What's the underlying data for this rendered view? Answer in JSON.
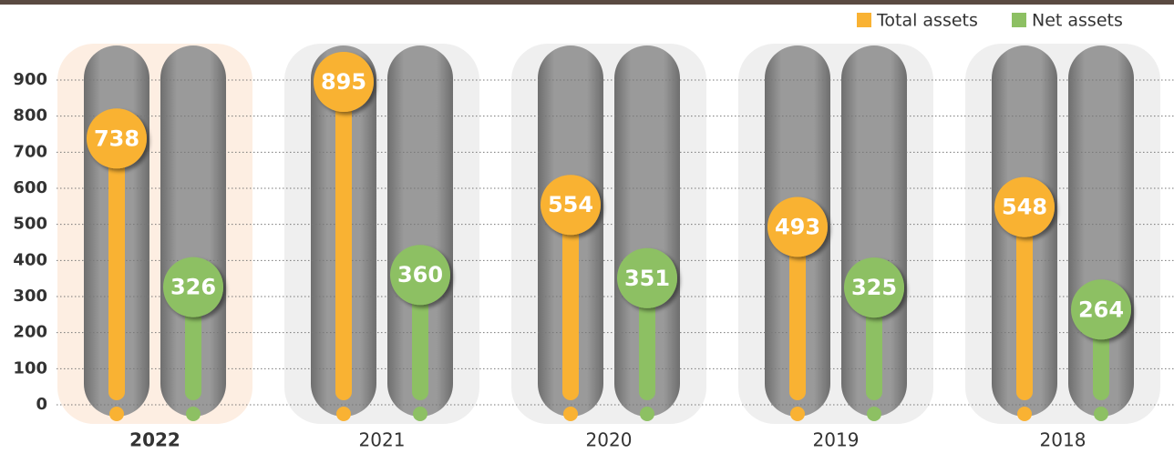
{
  "chart_data": {
    "type": "lollipop",
    "categories": [
      "2022",
      "2021",
      "2020",
      "2019",
      "2018"
    ],
    "highlighted_category": "2022",
    "series": [
      {
        "name": "Total assets",
        "color": "#f9b233",
        "values": [
          738,
          895,
          554,
          493,
          548
        ]
      },
      {
        "name": "Net assets",
        "color": "#8dc063",
        "values": [
          326,
          360,
          351,
          325,
          264
        ]
      }
    ],
    "ylim": [
      0,
      900
    ],
    "yticks": [
      0,
      100,
      200,
      300,
      400,
      500,
      600,
      700,
      800,
      900
    ],
    "grid": true,
    "legend": "top-right"
  }
}
